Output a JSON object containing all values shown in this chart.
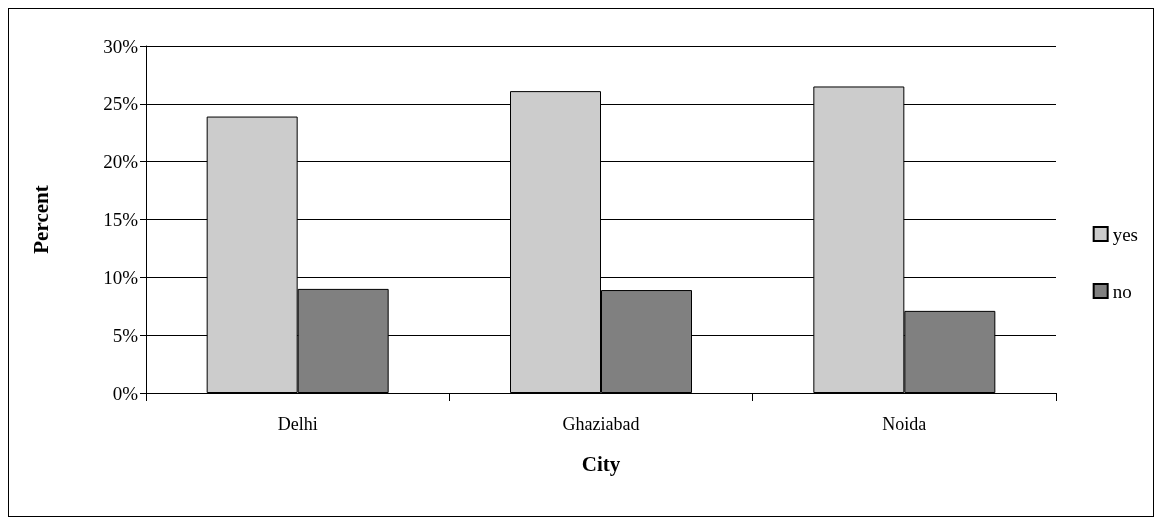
{
  "chart_data": {
    "type": "bar",
    "xlabel": "City",
    "ylabel": "Percent",
    "categories": [
      "Delhi",
      "Ghaziabad",
      "Noida"
    ],
    "series": [
      {
        "name": "yes",
        "color": "#cccccc",
        "values": [
          23.9,
          26.1,
          26.5
        ]
      },
      {
        "name": "no",
        "color": "#808080",
        "values": [
          9.0,
          8.9,
          7.1
        ]
      }
    ],
    "ylim": [
      0,
      30
    ],
    "yticks": [
      {
        "value": 0,
        "label": "0%"
      },
      {
        "value": 5,
        "label": "5%"
      },
      {
        "value": 10,
        "label": "10%"
      },
      {
        "value": 15,
        "label": "15%"
      },
      {
        "value": 20,
        "label": "20%"
      },
      {
        "value": 25,
        "label": "25%"
      },
      {
        "value": 30,
        "label": "30%"
      }
    ],
    "grid": "y",
    "legend": "right"
  }
}
